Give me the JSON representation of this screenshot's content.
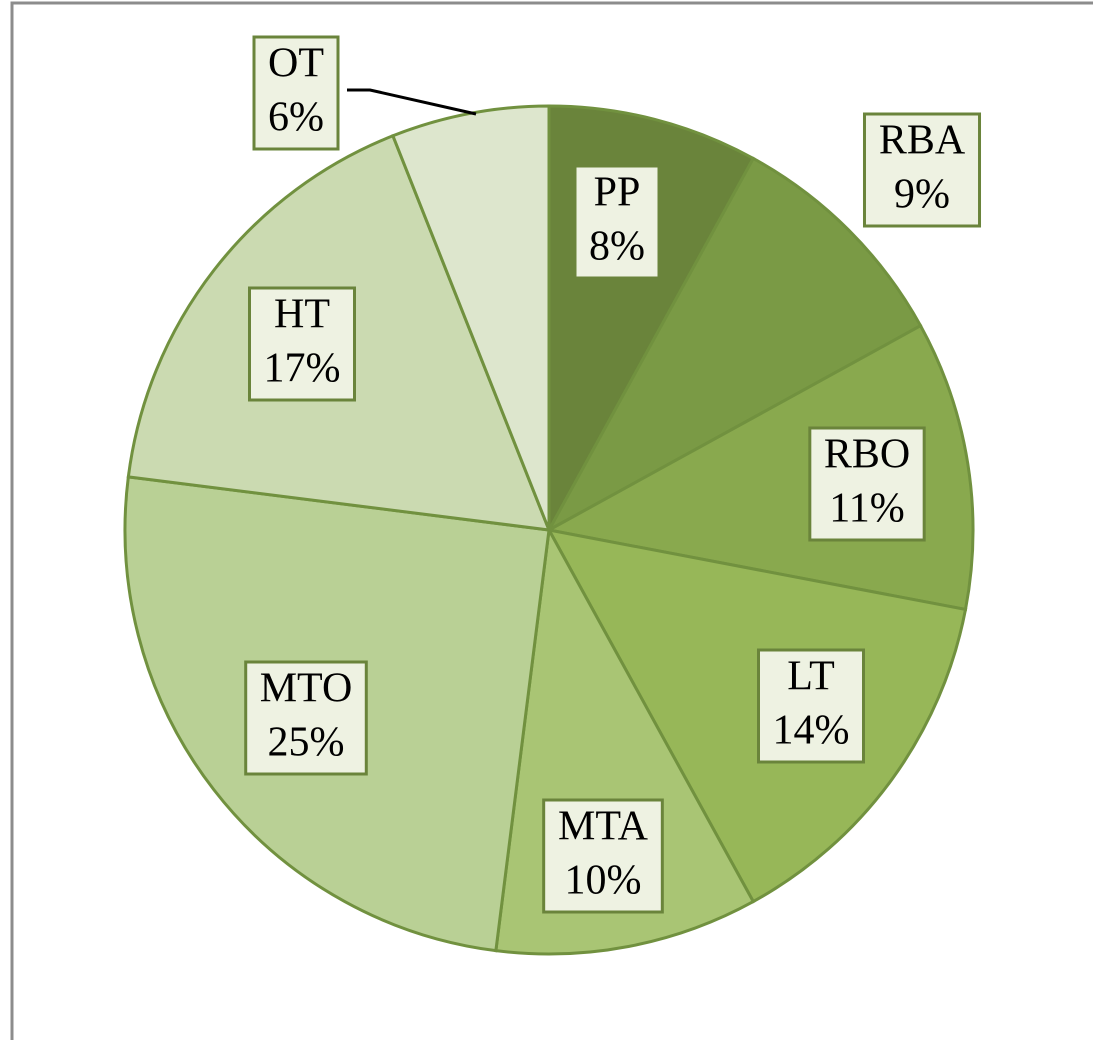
{
  "chart_data": {
    "type": "pie",
    "categories": [
      "PP",
      "RBA",
      "RBO",
      "LT",
      "MTA",
      "MTO",
      "HT",
      "OT"
    ],
    "values": [
      8,
      9,
      11,
      14,
      10,
      25,
      17,
      6
    ],
    "value_labels": [
      "8%",
      "9%",
      "11%",
      "14%",
      "10%",
      "25%",
      "17%",
      "6%"
    ],
    "colors": [
      "#6a843b",
      "#7a9a45",
      "#89a94e",
      "#97b758",
      "#a9c574",
      "#b9d095",
      "#cbdab1",
      "#dde6cd"
    ]
  }
}
